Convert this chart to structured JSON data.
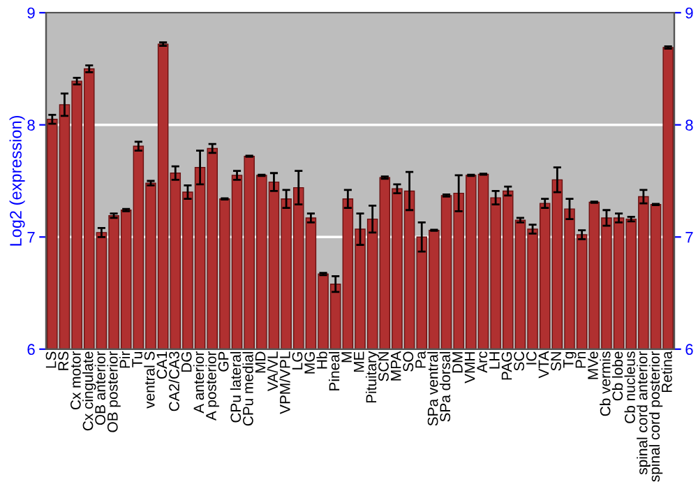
{
  "chart_data": {
    "type": "bar",
    "ylabel": "Log2 (expression)",
    "categories": [
      "LS",
      "RS",
      "Cx motor",
      "Cx cingulate",
      "OB anterior",
      "OB posterior",
      "Pir",
      "Tu",
      "ventral S",
      "CA1",
      "CA2/CA3",
      "DG",
      "A anterior",
      "A posterior",
      "GP",
      "CPu lateral",
      "CPu medial",
      "MD",
      "VA/VL",
      "VPM/VPL",
      "LG",
      "MG",
      "Hb",
      "Pineal",
      "M",
      "ME",
      "Pituitary",
      "SCN",
      "MPA",
      "SO",
      "Pa",
      "SPa ventral",
      "SPa dorsal",
      "DM",
      "VMH",
      "Arc",
      "LH",
      "PAG",
      "SC",
      "IC",
      "VTA",
      "SN",
      "Tg",
      "Pn",
      "MVe",
      "Cb vermis",
      "Cb lobe",
      "Cb nucleus",
      "spinal cord anterior",
      "spinal cord posterior",
      "Retina"
    ],
    "values": [
      8.05,
      8.18,
      8.39,
      8.5,
      7.04,
      7.19,
      7.24,
      7.81,
      7.48,
      8.72,
      7.57,
      7.4,
      7.62,
      7.79,
      7.34,
      7.55,
      7.72,
      7.55,
      7.49,
      7.34,
      7.44,
      7.17,
      6.67,
      6.58,
      7.34,
      7.07,
      7.16,
      7.53,
      7.43,
      7.41,
      7.0,
      7.06,
      7.37,
      7.39,
      7.55,
      7.56,
      7.35,
      7.41,
      7.15,
      7.07,
      7.3,
      7.51,
      7.25,
      7.02,
      7.31,
      7.17,
      7.17,
      7.16,
      7.36,
      7.29,
      8.69
    ],
    "errors": [
      0.04,
      0.1,
      0.03,
      0.03,
      0.04,
      0.02,
      0.01,
      0.04,
      0.02,
      0.015,
      0.06,
      0.06,
      0.15,
      0.04,
      0.005,
      0.04,
      0.005,
      0.005,
      0.08,
      0.08,
      0.15,
      0.04,
      0.01,
      0.07,
      0.08,
      0.14,
      0.12,
      0.01,
      0.04,
      0.17,
      0.13,
      0.005,
      0.01,
      0.16,
      0.005,
      0.005,
      0.06,
      0.04,
      0.02,
      0.04,
      0.04,
      0.11,
      0.09,
      0.04,
      0.005,
      0.07,
      0.04,
      0.02,
      0.06,
      0.005,
      0.01
    ],
    "color": "#b03030",
    "ylim": [
      6,
      9
    ],
    "yticks": [
      6,
      7,
      8,
      9
    ],
    "y2lim": [
      6,
      9
    ],
    "y2ticks": [
      6,
      7,
      8,
      9
    ],
    "grid": "y"
  }
}
